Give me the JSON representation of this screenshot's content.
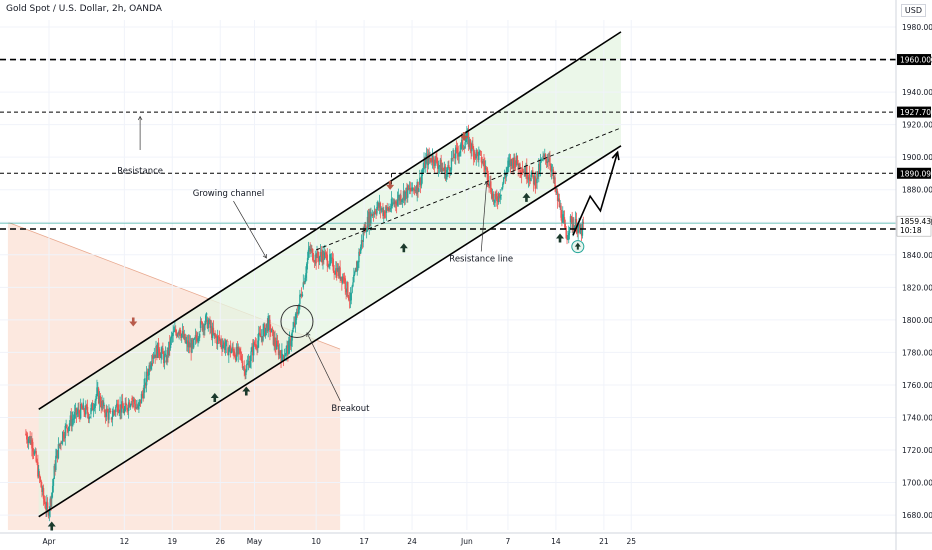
{
  "header": {
    "title": "Gold Spot / U.S. Dollar, 2h, OANDA",
    "currency": "USD"
  },
  "chart_data": {
    "type": "line",
    "symbol": "Gold Spot / U.S. Dollar",
    "interval": "2h",
    "source": "OANDA",
    "ylim": [
      1668,
      1988
    ],
    "y_ticks": [
      1680,
      1700,
      1720,
      1740,
      1760,
      1780,
      1800,
      1820,
      1840,
      1860,
      1880,
      1900,
      1920,
      1940,
      1960,
      1980
    ],
    "x_ticks": [
      {
        "label": "Apr",
        "d": 0
      },
      {
        "label": "12",
        "d": 11
      },
      {
        "label": "19",
        "d": 18
      },
      {
        "label": "26",
        "d": 25
      },
      {
        "label": "May",
        "d": 30
      },
      {
        "label": "10",
        "d": 39
      },
      {
        "label": "17",
        "d": 46
      },
      {
        "label": "24",
        "d": 53
      },
      {
        "label": "Jun",
        "d": 61
      },
      {
        "label": "7",
        "d": 67
      },
      {
        "label": "14",
        "d": 74
      },
      {
        "label": "21",
        "d": 81
      },
      {
        "label": "25",
        "d": 85
      }
    ],
    "price_path": [
      [
        -3.5,
        1730
      ],
      [
        -2.5,
        1725
      ],
      [
        -1.5,
        1705
      ],
      [
        -0.8,
        1690
      ],
      [
        -0.2,
        1682
      ],
      [
        0.3,
        1690
      ],
      [
        1,
        1715
      ],
      [
        2,
        1730
      ],
      [
        3,
        1737
      ],
      [
        4,
        1742
      ],
      [
        5,
        1745
      ],
      [
        6,
        1742
      ],
      [
        7,
        1755
      ],
      [
        8,
        1745
      ],
      [
        9,
        1740
      ],
      [
        10,
        1748
      ],
      [
        11,
        1744
      ],
      [
        12,
        1752
      ],
      [
        13,
        1745
      ],
      [
        14,
        1760
      ],
      [
        15,
        1778
      ],
      [
        16,
        1782
      ],
      [
        17,
        1775
      ],
      [
        18,
        1790
      ],
      [
        19,
        1795
      ],
      [
        20,
        1785
      ],
      [
        21,
        1783
      ],
      [
        22,
        1795
      ],
      [
        23,
        1800
      ],
      [
        24,
        1790
      ],
      [
        25,
        1787
      ],
      [
        26,
        1783
      ],
      [
        27,
        1780
      ],
      [
        28,
        1778
      ],
      [
        28.5,
        1770
      ],
      [
        29,
        1772
      ],
      [
        30,
        1785
      ],
      [
        31,
        1790
      ],
      [
        32,
        1798
      ],
      [
        33,
        1785
      ],
      [
        34,
        1778
      ],
      [
        35,
        1783
      ],
      [
        36,
        1800
      ],
      [
        37,
        1820
      ],
      [
        38,
        1843
      ],
      [
        39,
        1838
      ],
      [
        40,
        1840
      ],
      [
        41,
        1836
      ],
      [
        42,
        1830
      ],
      [
        43,
        1826
      ],
      [
        44,
        1812
      ],
      [
        45,
        1835
      ],
      [
        46,
        1855
      ],
      [
        47,
        1865
      ],
      [
        48,
        1870
      ],
      [
        49,
        1866
      ],
      [
        50,
        1870
      ],
      [
        51,
        1875
      ],
      [
        52,
        1878
      ],
      [
        53,
        1880
      ],
      [
        54,
        1883
      ],
      [
        55,
        1898
      ],
      [
        56,
        1900
      ],
      [
        57,
        1895
      ],
      [
        58,
        1890
      ],
      [
        59,
        1900
      ],
      [
        60,
        1905
      ],
      [
        61,
        1912
      ],
      [
        62,
        1903
      ],
      [
        63,
        1900
      ],
      [
        64,
        1890
      ],
      [
        65,
        1872
      ],
      [
        66,
        1880
      ],
      [
        67,
        1895
      ],
      [
        68,
        1898
      ],
      [
        69,
        1893
      ],
      [
        70,
        1890
      ],
      [
        71,
        1885
      ],
      [
        72,
        1898
      ],
      [
        73,
        1900
      ],
      [
        74,
        1878
      ],
      [
        75,
        1862
      ],
      [
        75.5,
        1850
      ],
      [
        76,
        1860
      ],
      [
        77,
        1858
      ],
      [
        77.5,
        1853
      ],
      [
        78,
        1857
      ]
    ],
    "horizontal_levels": [
      {
        "price": 1960,
        "label": "1960.000",
        "style": "dashed-bold"
      },
      {
        "price": 1927.7,
        "label": "1927.700",
        "style": "dashed"
      },
      {
        "price": 1890.094,
        "label": "1890.094",
        "style": "dashed"
      },
      {
        "price": 1855.846,
        "label": "1855.846",
        "style": "dashed-bold"
      }
    ],
    "current_price": {
      "price": 1859.43,
      "label": "1859.430",
      "countdown": "10:18"
    },
    "channel": {
      "upper": [
        [
          -1.5,
          1745
        ],
        [
          83.5,
          1977
        ]
      ],
      "lower": [
        [
          -1.5,
          1679
        ],
        [
          83.5,
          1907
        ]
      ],
      "midline": [
        [
          39,
          1843
        ],
        [
          83.5,
          1918
        ]
      ],
      "fill": "#e4f4e1"
    },
    "resistance_line": [
      [
        50,
        1890
      ],
      [
        81,
        1890
      ]
    ],
    "projection": [
      [
        76.5,
        1852
      ],
      [
        79,
        1876
      ],
      [
        80.5,
        1867
      ],
      [
        83,
        1903
      ]
    ],
    "shaded_zone": {
      "from_d": -6,
      "to_d": 42.5,
      "top_left": 1860,
      "top_right": 1782,
      "bottom": 1668,
      "fill": "#fbe4d9"
    },
    "breakout_circle": {
      "d": 36.2,
      "price": 1799
    },
    "up_markers": [
      [
        0.4,
        1673
      ],
      [
        24.2,
        1752
      ],
      [
        28.8,
        1756
      ],
      [
        51.8,
        1844
      ],
      [
        69.7,
        1875
      ],
      [
        74.6,
        1850
      ]
    ],
    "down_markers": [
      [
        12.3,
        1799
      ],
      [
        49.8,
        1883
      ],
      [
        60.6,
        1913
      ]
    ],
    "annotations": [
      {
        "text": "Resistance",
        "d": 13.3,
        "price": 1890,
        "anchor": "middle"
      },
      {
        "text": "Growing channel",
        "d": 26.2,
        "price": 1876,
        "anchor": "middle"
      },
      {
        "text": "Breakout",
        "d": 44.0,
        "price": 1744,
        "anchor": "middle"
      },
      {
        "text": "Resistance line",
        "d": 63.1,
        "price": 1836,
        "anchor": "middle"
      }
    ],
    "colors": {
      "up": "#26a69a",
      "down": "#ef5350",
      "line": "#000000",
      "grid": "#f0f3fa",
      "axis_text": "#131722",
      "channel_fill": "#e4f4e1",
      "zone_fill": "#fbe4d9",
      "circle_marker": "#26a69a"
    }
  }
}
